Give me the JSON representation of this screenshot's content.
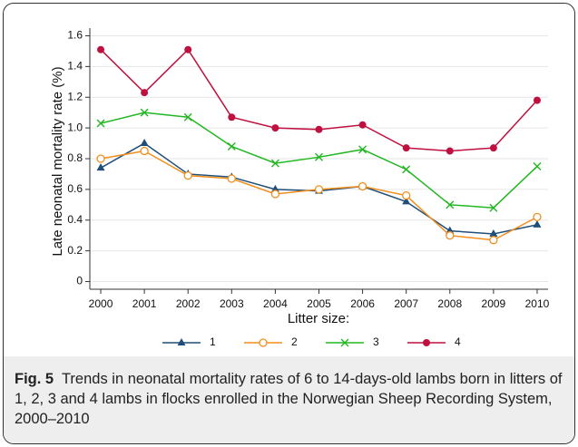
{
  "chart_data": {
    "type": "line",
    "ylabel": "Late neonatal mortality rate (%)",
    "xlabel": "Litter size:",
    "x": [
      2000,
      2001,
      2002,
      2003,
      2004,
      2005,
      2006,
      2007,
      2008,
      2009,
      2010
    ],
    "xlim": [
      1999.75,
      2010.25
    ],
    "xticks": [
      2000,
      2001,
      2002,
      2003,
      2004,
      2005,
      2006,
      2007,
      2008,
      2009,
      2010
    ],
    "ylim": [
      -0.05,
      1.65
    ],
    "yticks": [
      0,
      0.2,
      0.4,
      0.6,
      0.8,
      {
        "value": 1,
        "label": "1.0"
      },
      1.2,
      1.4,
      1.6
    ],
    "grid": true,
    "series": [
      {
        "name": "1",
        "color": "#1f4e79",
        "marker": "triangle",
        "values": [
          0.74,
          0.9,
          0.7,
          0.68,
          0.6,
          0.59,
          0.62,
          0.52,
          0.33,
          0.31,
          0.37
        ]
      },
      {
        "name": "2",
        "color": "#f28e1c",
        "marker": "circle-open",
        "values": [
          0.8,
          0.85,
          0.69,
          0.67,
          0.57,
          0.6,
          0.62,
          0.56,
          0.3,
          0.27,
          0.42
        ]
      },
      {
        "name": "3",
        "color": "#22b722",
        "marker": "x",
        "values": [
          1.03,
          1.1,
          1.07,
          0.88,
          0.77,
          0.81,
          0.86,
          0.73,
          0.5,
          0.48,
          0.75
        ]
      },
      {
        "name": "4",
        "color": "#c0103f",
        "marker": "circle",
        "values": [
          1.51,
          1.23,
          1.51,
          1.07,
          1.0,
          0.99,
          1.02,
          0.87,
          0.85,
          0.87,
          1.18
        ]
      }
    ]
  },
  "caption": {
    "label": "Fig. 5",
    "text": "Trends in neonatal mortality rates of 6 to 14-days-old lambs born in litters of 1, 2, 3 and 4 lambs in flocks enrolled in the Norwegian Sheep Recording System, 2000–2010"
  }
}
